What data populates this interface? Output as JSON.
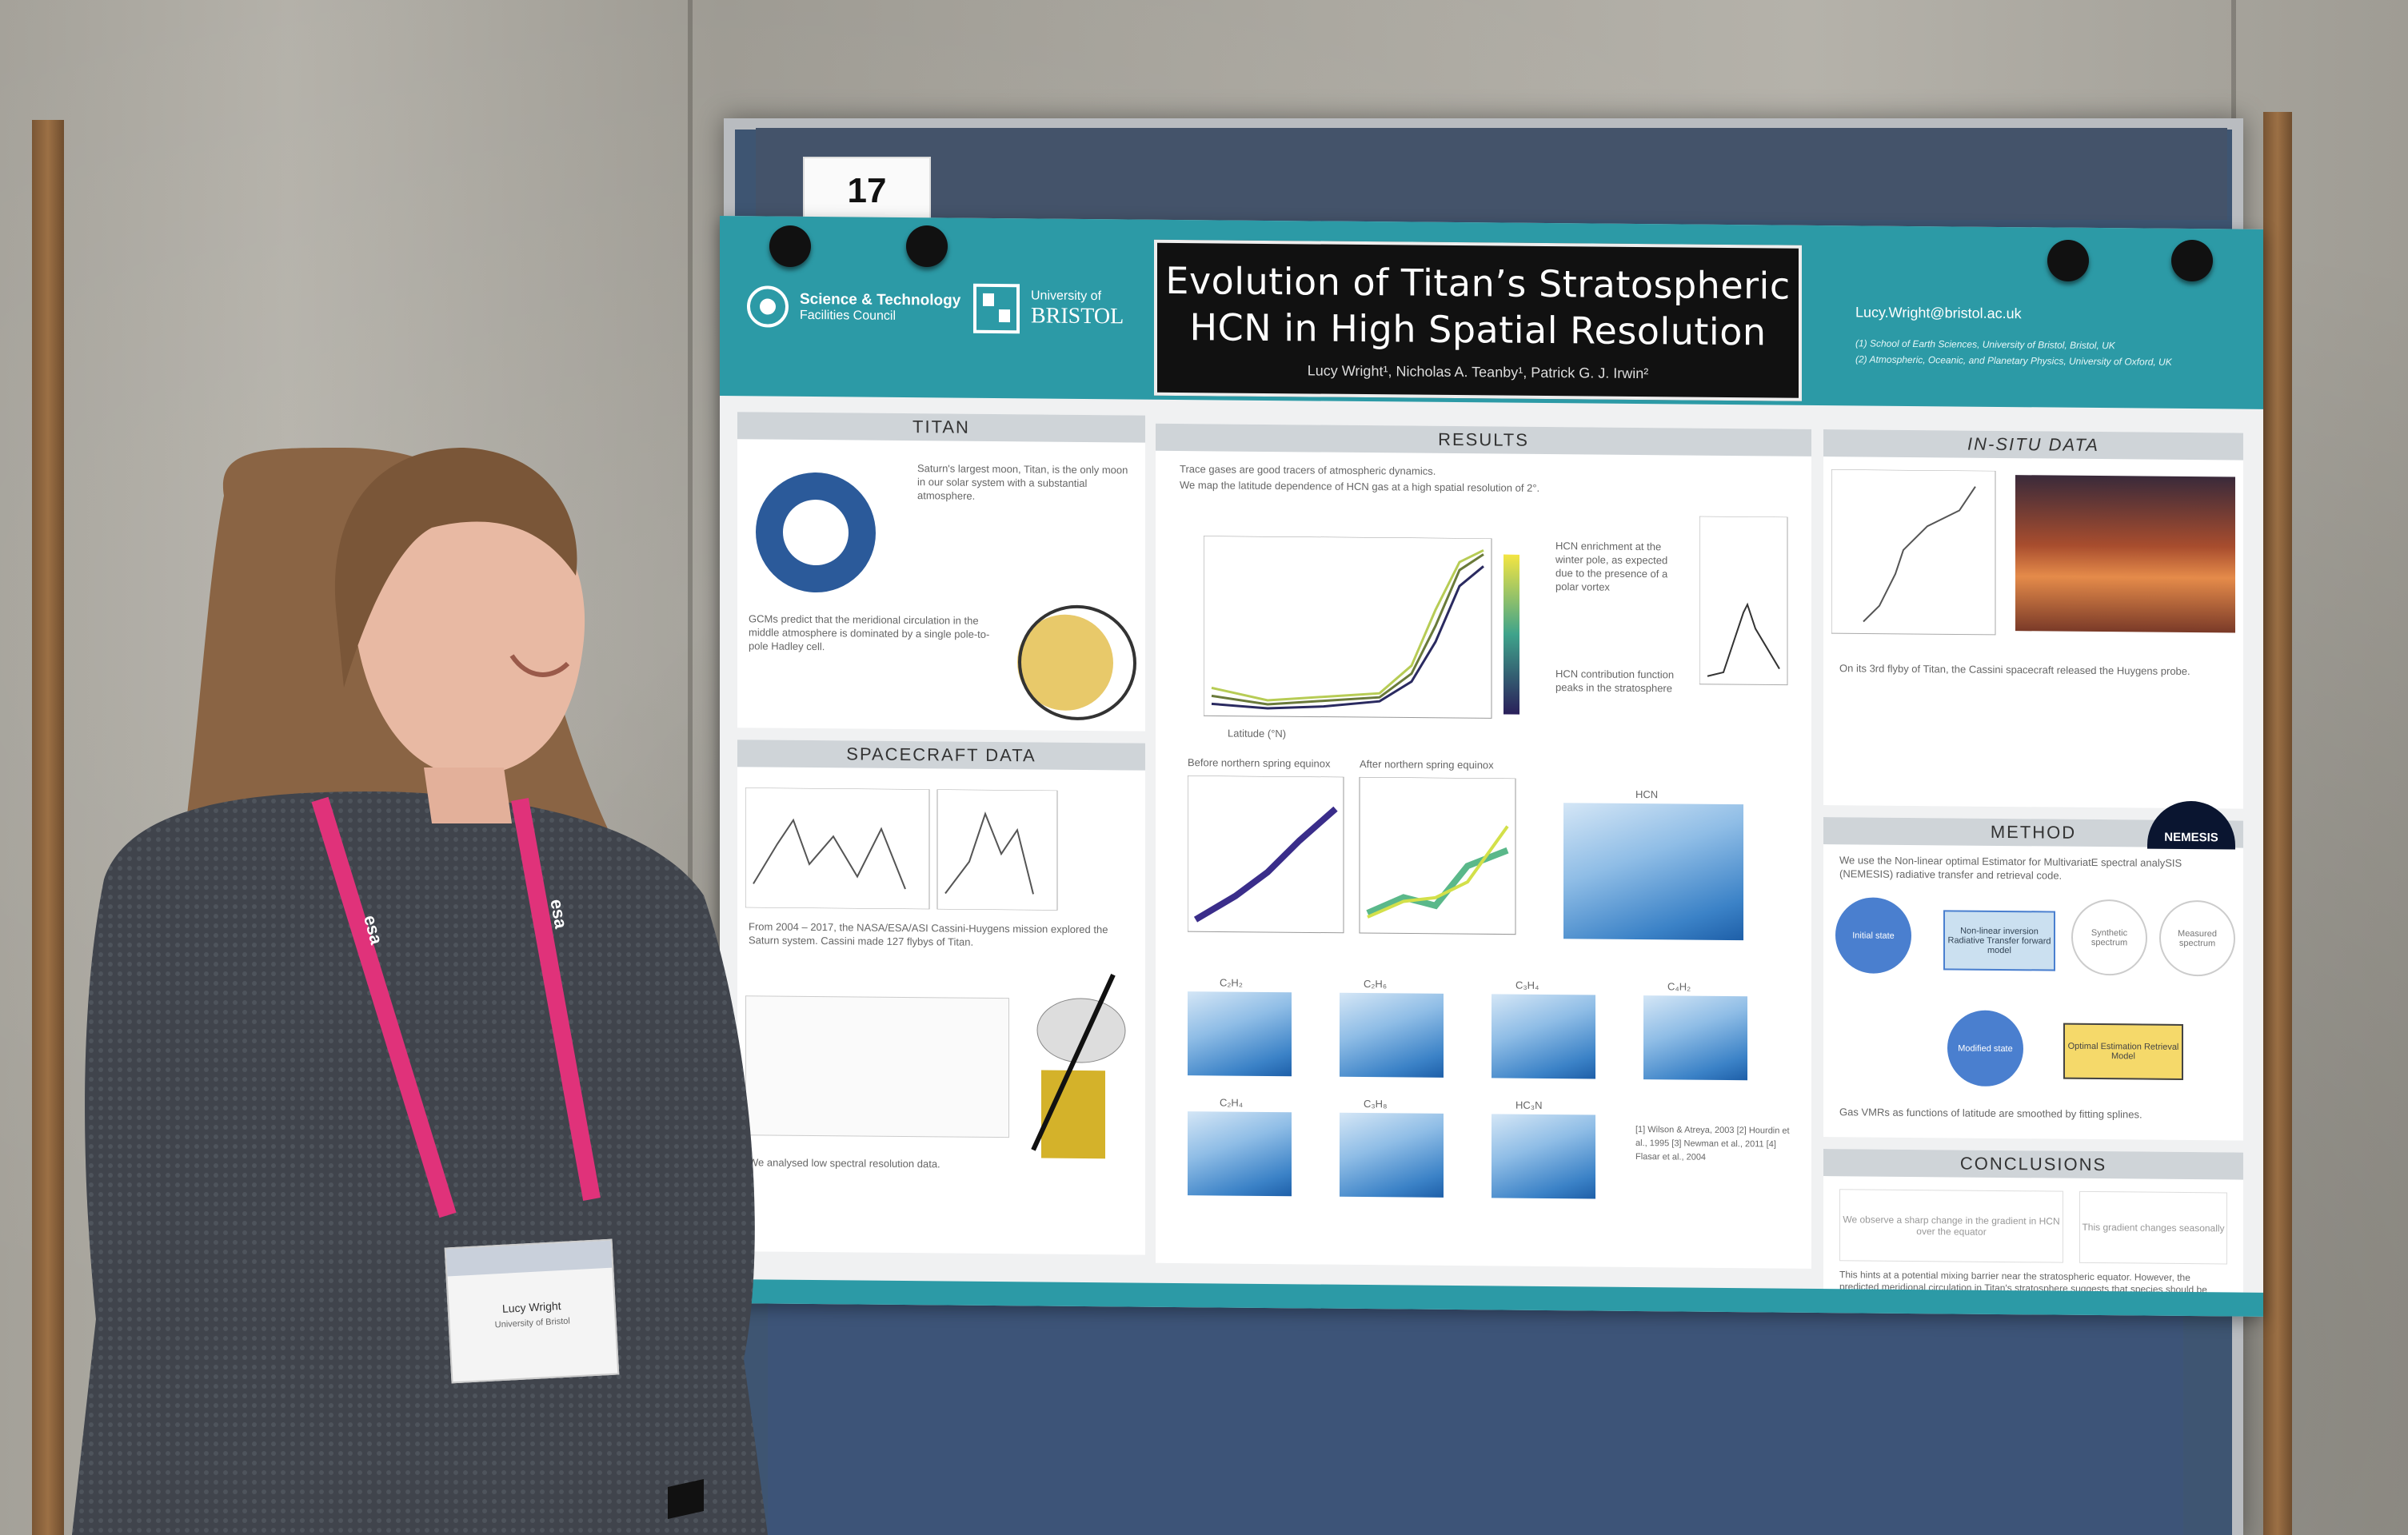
{
  "scene": {
    "description_colors": {
      "wall": "#a4a199",
      "board": "#3e5572",
      "poster_header": "#2c9aa6",
      "lanyard": "#e0327a",
      "sweater": "#454a52"
    }
  },
  "board": {
    "number": "17"
  },
  "poster": {
    "title_line1": "Evolution of Titan’s Stratospheric",
    "title_line2": "HCN in High Spatial Resolution",
    "authors": "Lucy Wright¹, Nicholas A. Teanby¹, Patrick G. J. Irwin²",
    "logo_stfc_line1": "Science & Technology",
    "logo_stfc_line2": "Facilities Council",
    "logo_bristol_line1": "University of",
    "logo_bristol_line2": "BRISTOL",
    "email": "Lucy.Wright@bristol.ac.uk",
    "affiliation_1": "(1) School of Earth Sciences, University of Bristol, Bristol, UK",
    "affiliation_2": "(2) Atmospheric, Oceanic, and Planetary Physics, University of Oxford, UK",
    "sections": {
      "titan": "TITAN",
      "spacecraft": "SPACECRAFT DATA",
      "results": "RESULTS",
      "insitu": "IN-SITU DATA",
      "method": "METHOD",
      "conclusions": "CONCLUSIONS"
    },
    "titan_text": "Saturn's largest moon, Titan, is the only moon in our solar system with a substantial atmosphere.",
    "titan_text2": "GCMs predict that the meridional circulation in the middle atmosphere is dominated by a single pole-to-pole Hadley cell.",
    "spacecraft_text": "From 2004 – 2017, the NASA/ESA/ASI Cassini-Huygens mission explored the Saturn system. Cassini made 127 flybys of Titan.",
    "spacecraft_text2": "We analysed low spectral resolution data.",
    "results_bullet1": "Trace gases are good tracers of atmospheric dynamics.",
    "results_bullet2": "We map the latitude dependence of HCN gas at a high spatial resolution of 2°.",
    "results_note": "HCN enrichment at the winter pole, as expected due to the presence of a polar vortex",
    "results_note2": "HCN contribution function peaks in the stratosphere",
    "heat_labels": [
      "C₂H₂",
      "C₂H₆",
      "C₃H₄",
      "C₄H₂",
      "C₂H₄",
      "C₃H₈",
      "HC₃N"
    ],
    "hcn_label": "HCN",
    "latitude_label": "Latitude (°N)",
    "plot_left_label": "Before northern spring equinox",
    "plot_right_label": "After northern spring equinox",
    "insitu_text": "On its 3rd flyby of Titan, the Cassini spacecraft released the Huygens probe.",
    "method_text": "We use the Non-linear optimal Estimator for MultivariatE spectral analySIS (NEMESIS) radiative transfer and retrieval code.",
    "nemesis_logo": "NEMESIS",
    "flow": {
      "a": "Initial state",
      "b": "Non-linear inversion Radiative Transfer forward model",
      "c": "Synthetic spectrum",
      "d": "Measured spectrum",
      "e": "Modified state",
      "f": "Optimal Estimation Retrieval Model"
    },
    "method_note": "Gas VMRs as functions of latitude are smoothed by fitting splines.",
    "conc_box1": "We observe a sharp change in the gradient in HCN over the equator",
    "conc_box2": "This gradient changes seasonally",
    "conc_text": "This hints at a potential mixing barrier near the stratospheric equator. However, the predicted meridional circulation in Titan's stratosphere suggests that species should be freely mixed over the equator.",
    "references": "[1] Wilson & Atreya, 2003 [2] Hourdin et al., 1995 [3] Newman et al., 2011 [4] Flasar et al., 2004"
  },
  "badge": {
    "name": "Lucy Wright",
    "institution": "University of Bristol",
    "lanyard_text": "esa"
  }
}
